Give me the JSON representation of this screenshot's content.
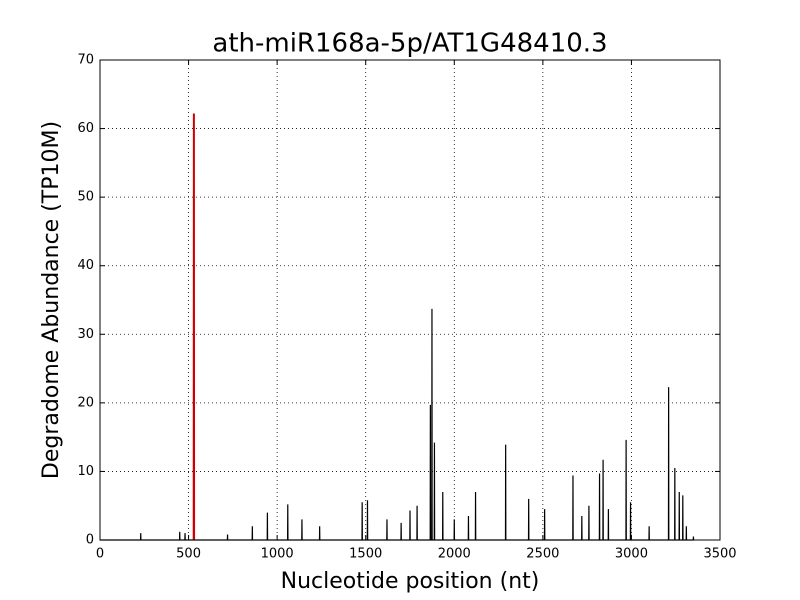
{
  "chart_data": {
    "type": "line",
    "title": "ath-miR168a-5p/AT1G48410.3",
    "xlabel": "Nucleotide position (nt)",
    "ylabel": "Degradome Abundance (TP10M)",
    "xlim": [
      0,
      3500
    ],
    "xticks": [
      0,
      500,
      1000,
      1500,
      2000,
      2500,
      3000,
      3500
    ],
    "ylim": [
      0,
      70
    ],
    "yticks": [
      0,
      10,
      20,
      30,
      40,
      50,
      60,
      70
    ],
    "grid": true,
    "series": [
      {
        "color": "#000000",
        "x": [
          0,
          229,
          230,
          231,
          449,
          450,
          451,
          479,
          480,
          481,
          719,
          720,
          721,
          859,
          860,
          861,
          944,
          945,
          946,
          1059,
          1060,
          1061,
          1139,
          1140,
          1141,
          1239,
          1240,
          1241,
          1479,
          1480,
          1481,
          1509,
          1510,
          1511,
          1619,
          1620,
          1621,
          1699,
          1700,
          1701,
          1749,
          1750,
          1751,
          1789,
          1790,
          1791,
          1864,
          1865,
          1866,
          1873,
          1874,
          1875,
          1887,
          1888,
          1889,
          1934,
          1935,
          1936,
          1999,
          2000,
          2001,
          2079,
          2080,
          2081,
          2119,
          2120,
          2121,
          2289,
          2290,
          2291,
          2419,
          2420,
          2421,
          2509,
          2510,
          2511,
          2669,
          2670,
          2671,
          2719,
          2720,
          2721,
          2759,
          2760,
          2761,
          2819,
          2820,
          2821,
          2839,
          2840,
          2841,
          2869,
          2870,
          2871,
          2969,
          2970,
          2971,
          2994,
          2995,
          2996,
          3099,
          3100,
          3101,
          3209,
          3210,
          3211,
          3244,
          3245,
          3246,
          3269,
          3270,
          3271,
          3289,
          3290,
          3291,
          3309,
          3310,
          3311,
          3349,
          3350,
          3351
        ],
        "values": [
          0,
          0,
          1,
          0,
          0,
          1.2,
          0,
          0,
          1,
          0,
          0,
          0.8,
          0,
          0,
          2,
          0,
          0,
          4,
          0,
          0,
          5.2,
          0,
          0,
          3,
          0,
          0,
          2,
          0,
          0,
          5.5,
          0,
          0,
          5.8,
          0,
          0,
          3,
          0,
          0,
          2.5,
          0,
          0,
          4.3,
          0,
          0,
          5,
          0,
          0,
          19.7,
          0,
          0,
          33.7,
          0,
          0,
          14.2,
          0,
          0,
          7,
          0,
          0,
          3,
          0,
          0,
          3.5,
          0,
          0,
          7,
          0,
          0,
          13.9,
          0,
          0,
          6,
          0,
          0,
          4.5,
          0,
          0,
          9.4,
          0,
          0,
          3.5,
          0,
          0,
          5,
          0,
          0,
          9.7,
          0,
          0,
          11.7,
          0,
          0,
          4.5,
          0,
          0,
          14.6,
          0,
          0,
          5.5,
          0,
          0,
          2,
          0,
          0,
          22.3,
          0,
          0,
          10.5,
          0,
          0,
          7,
          0,
          0,
          6.5,
          0,
          0,
          2,
          0,
          0,
          0.5,
          0
        ]
      },
      {
        "color": "#cc0000",
        "x": [
          529,
          530,
          531
        ],
        "values": [
          0,
          62.2,
          0
        ]
      }
    ]
  }
}
